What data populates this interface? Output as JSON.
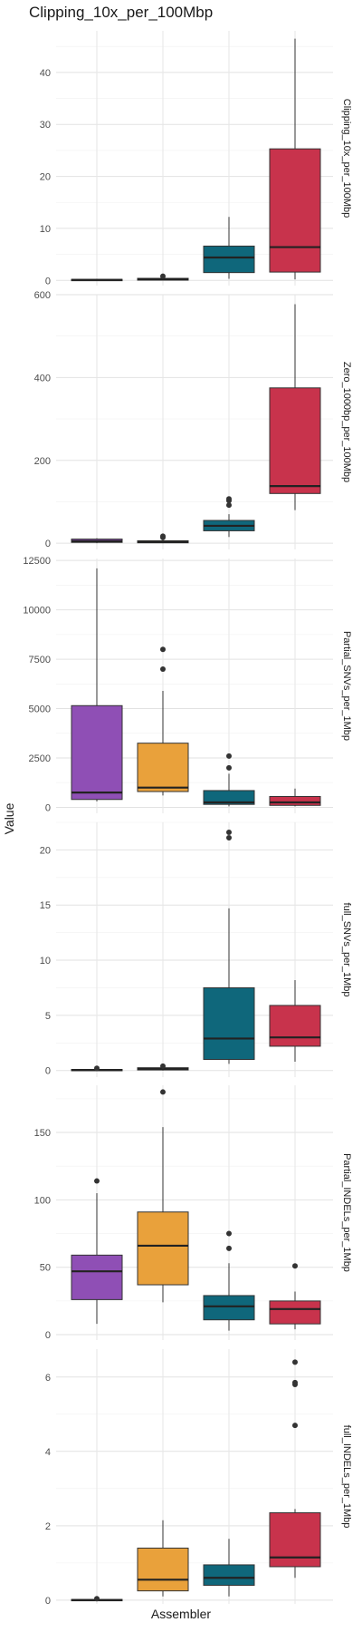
{
  "chart_data": {
    "type": "boxplot",
    "title": "Clipping_10x_per_100Mbp",
    "xlabel": "Assembler",
    "ylabel": "Value",
    "grid": true,
    "colors": [
      "#8f4fb5",
      "#e9a13b",
      "#0f677b",
      "#c8334c"
    ],
    "facets": [
      {
        "strip": "Clipping_10x_per_100Mbp",
        "ylim": [
          -1,
          48
        ],
        "ticks": [
          0,
          10,
          20,
          30,
          40
        ],
        "boxes": [
          {
            "min": 0,
            "q1": 0.05,
            "median": 0.1,
            "q3": 0.2,
            "max": 0.3,
            "outliers": []
          },
          {
            "min": 0,
            "q1": 0.05,
            "median": 0.2,
            "q3": 0.4,
            "max": 0.6,
            "outliers": [
              0.8
            ]
          },
          {
            "min": 0.3,
            "q1": 1.5,
            "median": 4.4,
            "q3": 6.6,
            "max": 12.2,
            "outliers": []
          },
          {
            "min": 0.2,
            "q1": 1.6,
            "median": 6.4,
            "q3": 25.3,
            "max": 46.5,
            "outliers": []
          }
        ]
      },
      {
        "strip": "Zero_1000bp_per_100Mbp",
        "ylim": [
          -15,
          600
        ],
        "ticks": [
          0,
          200,
          400,
          600
        ],
        "boxes": [
          {
            "min": 0,
            "q1": 2,
            "median": 5,
            "q3": 10,
            "max": 12,
            "outliers": []
          },
          {
            "min": 0,
            "q1": 1,
            "median": 3,
            "q3": 6,
            "max": 10,
            "outliers": [
              14,
              17
            ]
          },
          {
            "min": 15,
            "q1": 30,
            "median": 42,
            "q3": 55,
            "max": 70,
            "outliers": [
              92,
              103,
              107
            ]
          },
          {
            "min": 80,
            "q1": 120,
            "median": 138,
            "q3": 375,
            "max": 577,
            "outliers": []
          }
        ]
      },
      {
        "strip": "Partial_SNVs_per_1Mbp",
        "ylim": [
          -300,
          12600
        ],
        "ticks": [
          0,
          2500,
          5000,
          7500,
          10000,
          12500
        ],
        "boxes": [
          {
            "min": 300,
            "q1": 400,
            "median": 750,
            "q3": 5150,
            "max": 12100,
            "outliers": []
          },
          {
            "min": 600,
            "q1": 800,
            "median": 1000,
            "q3": 3250,
            "max": 5900,
            "outliers": [
              7000,
              8000
            ]
          },
          {
            "min": 50,
            "q1": 150,
            "median": 250,
            "q3": 850,
            "max": 1700,
            "outliers": [
              2000,
              2600
            ]
          },
          {
            "min": 50,
            "q1": 100,
            "median": 250,
            "q3": 550,
            "max": 950,
            "outliers": []
          }
        ]
      },
      {
        "strip": "full_SNVs_per_1Mbp",
        "ylim": [
          -0.6,
          22.5
        ],
        "ticks": [
          0,
          5,
          10,
          15,
          20
        ],
        "boxes": [
          {
            "min": 0,
            "q1": 0,
            "median": 0.05,
            "q3": 0.1,
            "max": 0.15,
            "outliers": [
              0.2
            ]
          },
          {
            "min": 0,
            "q1": 0.05,
            "median": 0.15,
            "q3": 0.25,
            "max": 0.3,
            "outliers": [
              0.4
            ]
          },
          {
            "min": 0.6,
            "q1": 1.0,
            "median": 2.9,
            "q3": 7.5,
            "max": 14.7,
            "outliers": [
              21.1,
              21.6
            ]
          },
          {
            "min": 0.8,
            "q1": 2.2,
            "median": 3.0,
            "q3": 5.9,
            "max": 8.2,
            "outliers": []
          }
        ]
      },
      {
        "strip": "Partial_INDELs_per_1Mbp",
        "ylim": [
          -4,
          185
        ],
        "ticks": [
          0,
          50,
          100,
          150
        ],
        "boxes": [
          {
            "min": 8,
            "q1": 26,
            "median": 47,
            "q3": 59,
            "max": 105,
            "outliers": [
              114
            ]
          },
          {
            "min": 24,
            "q1": 37,
            "median": 66,
            "q3": 91,
            "max": 154,
            "outliers": [
              180
            ]
          },
          {
            "min": 3,
            "q1": 11,
            "median": 21,
            "q3": 29,
            "max": 53,
            "outliers": [
              64,
              75
            ]
          },
          {
            "min": 4,
            "q1": 8,
            "median": 19,
            "q3": 25,
            "max": 32,
            "outliers": [
              51
            ]
          }
        ]
      },
      {
        "strip": "full_INDELs_per_1Mbp",
        "ylim": [
          -0.1,
          6.75
        ],
        "ticks": [
          0,
          2,
          4,
          6
        ],
        "boxes": [
          {
            "min": 0,
            "q1": 0,
            "median": 0,
            "q3": 0.02,
            "max": 0.03,
            "outliers": [
              0.04
            ]
          },
          {
            "min": 0.1,
            "q1": 0.25,
            "median": 0.55,
            "q3": 1.4,
            "max": 2.15,
            "outliers": []
          },
          {
            "min": 0.1,
            "q1": 0.4,
            "median": 0.6,
            "q3": 0.95,
            "max": 1.65,
            "outliers": []
          },
          {
            "min": 0.6,
            "q1": 0.9,
            "median": 1.15,
            "q3": 2.35,
            "max": 2.45,
            "outliers": [
              4.7,
              5.8,
              5.85,
              6.4
            ]
          }
        ]
      }
    ]
  }
}
